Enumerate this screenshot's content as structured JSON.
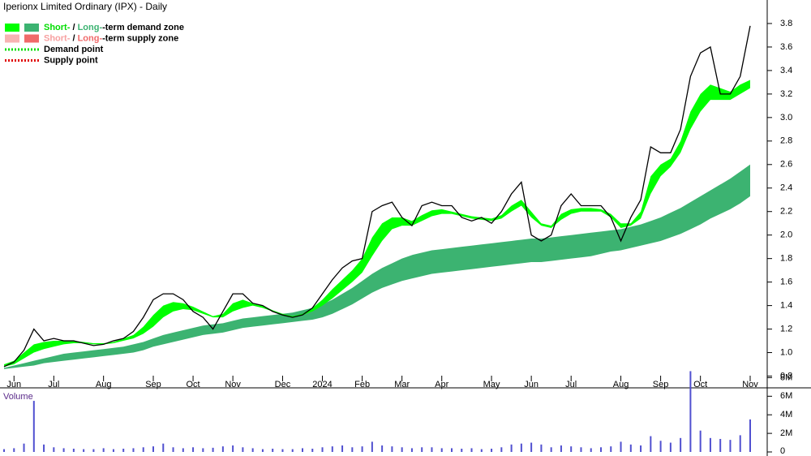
{
  "chart_data": [
    {
      "type": "line",
      "title": "Iperionx Limited Ordinary (IPX) - Daily",
      "legend": [
        {
          "swatches": [
            "#00ff00",
            "#3cb371"
          ],
          "parts": [
            {
              "text": "Short-",
              "color": "#00dd00"
            },
            {
              "text": " / ",
              "color": "#000000"
            },
            {
              "text": "Long-",
              "color": "#3cb371"
            },
            {
              "text": "-term demand zone",
              "color": "#000000"
            }
          ]
        },
        {
          "swatches": [
            "#f7b3b3",
            "#f06a6a"
          ],
          "parts": [
            {
              "text": "Short-",
              "color": "#f7a0a0"
            },
            {
              "text": " / ",
              "color": "#000000"
            },
            {
              "text": "Long-",
              "color": "#f06a6a"
            },
            {
              "text": "-term supply zone",
              "color": "#000000"
            }
          ]
        },
        {
          "dotted": "#00dd00",
          "parts": [
            {
              "text": "Demand point",
              "color": "#000000"
            }
          ]
        },
        {
          "dotted": "#e00000",
          "parts": [
            {
              "text": "Supply point",
              "color": "#000000"
            }
          ]
        }
      ],
      "categories": [
        null,
        "Jun",
        null,
        null,
        null,
        "Jul",
        null,
        null,
        null,
        null,
        "Aug",
        null,
        null,
        null,
        null,
        "Sep",
        null,
        null,
        null,
        "Oct",
        null,
        null,
        null,
        "Nov",
        null,
        null,
        null,
        null,
        "Dec",
        null,
        null,
        null,
        "2024",
        null,
        null,
        null,
        "Feb",
        null,
        null,
        null,
        "Mar",
        null,
        null,
        null,
        "Apr",
        null,
        null,
        null,
        null,
        "May",
        null,
        null,
        null,
        "Jun",
        null,
        null,
        null,
        "Jul",
        null,
        null,
        null,
        null,
        "Aug",
        null,
        null,
        null,
        "Sep",
        null,
        null,
        null,
        "Oct",
        null,
        null,
        null,
        null,
        "Nov"
      ],
      "values": [
        0.88,
        0.92,
        1.02,
        1.2,
        1.1,
        1.12,
        1.1,
        1.1,
        1.08,
        1.06,
        1.07,
        1.1,
        1.12,
        1.18,
        1.3,
        1.45,
        1.5,
        1.5,
        1.45,
        1.35,
        1.3,
        1.2,
        1.35,
        1.5,
        1.5,
        1.42,
        1.4,
        1.35,
        1.32,
        1.3,
        1.32,
        1.38,
        1.5,
        1.62,
        1.72,
        1.78,
        1.8,
        2.2,
        2.25,
        2.28,
        2.15,
        2.08,
        2.25,
        2.28,
        2.25,
        2.25,
        2.15,
        2.12,
        2.15,
        2.1,
        2.2,
        2.35,
        2.45,
        2.0,
        1.95,
        2.0,
        2.25,
        2.35,
        2.25,
        2.25,
        2.25,
        2.15,
        1.95,
        2.15,
        2.3,
        2.75,
        2.7,
        2.7,
        2.9,
        3.35,
        3.55,
        3.6,
        3.2,
        3.2,
        3.35,
        3.78
      ],
      "color": "#000000",
      "bands": [
        {
          "color": "#3cb371",
          "lower": [
            0.86,
            0.87,
            0.88,
            0.89,
            0.91,
            0.92,
            0.93,
            0.94,
            0.95,
            0.96,
            0.97,
            0.98,
            0.99,
            1.0,
            1.02,
            1.05,
            1.07,
            1.09,
            1.11,
            1.13,
            1.15,
            1.16,
            1.17,
            1.19,
            1.21,
            1.22,
            1.23,
            1.24,
            1.25,
            1.26,
            1.27,
            1.28,
            1.3,
            1.33,
            1.37,
            1.41,
            1.46,
            1.51,
            1.55,
            1.58,
            1.61,
            1.63,
            1.65,
            1.67,
            1.68,
            1.69,
            1.7,
            1.71,
            1.72,
            1.73,
            1.74,
            1.75,
            1.76,
            1.77,
            1.77,
            1.78,
            1.79,
            1.8,
            1.81,
            1.82,
            1.84,
            1.86,
            1.87,
            1.89,
            1.91,
            1.93,
            1.95,
            1.98,
            2.01,
            2.05,
            2.09,
            2.14,
            2.18,
            2.22,
            2.27,
            2.33
          ],
          "upper": [
            0.87,
            0.89,
            0.91,
            0.93,
            0.95,
            0.97,
            0.99,
            1.0,
            1.01,
            1.02,
            1.03,
            1.04,
            1.05,
            1.07,
            1.09,
            1.12,
            1.15,
            1.17,
            1.19,
            1.21,
            1.23,
            1.24,
            1.25,
            1.27,
            1.29,
            1.3,
            1.31,
            1.32,
            1.33,
            1.34,
            1.36,
            1.38,
            1.41,
            1.45,
            1.5,
            1.55,
            1.61,
            1.67,
            1.72,
            1.76,
            1.8,
            1.83,
            1.85,
            1.87,
            1.88,
            1.89,
            1.9,
            1.91,
            1.92,
            1.93,
            1.94,
            1.95,
            1.96,
            1.97,
            1.97,
            1.98,
            1.99,
            2.0,
            2.01,
            2.02,
            2.03,
            2.04,
            2.05,
            2.07,
            2.09,
            2.12,
            2.15,
            2.19,
            2.23,
            2.28,
            2.33,
            2.38,
            2.43,
            2.48,
            2.54,
            2.6
          ]
        },
        {
          "color": "#00ff00",
          "lower": [
            0.88,
            0.9,
            0.95,
            1.0,
            1.03,
            1.05,
            1.07,
            1.08,
            1.08,
            1.07,
            1.07,
            1.08,
            1.1,
            1.12,
            1.16,
            1.22,
            1.3,
            1.35,
            1.37,
            1.36,
            1.33,
            1.3,
            1.3,
            1.35,
            1.38,
            1.4,
            1.38,
            1.35,
            1.32,
            1.3,
            1.32,
            1.35,
            1.4,
            1.46,
            1.53,
            1.6,
            1.68,
            1.82,
            1.95,
            2.05,
            2.08,
            2.08,
            2.12,
            2.16,
            2.18,
            2.18,
            2.16,
            2.14,
            2.13,
            2.12,
            2.14,
            2.2,
            2.25,
            2.15,
            2.08,
            2.06,
            2.13,
            2.18,
            2.2,
            2.2,
            2.2,
            2.15,
            2.06,
            2.08,
            2.14,
            2.35,
            2.5,
            2.58,
            2.7,
            2.9,
            3.05,
            3.15,
            3.15,
            3.15,
            3.2,
            3.25
          ],
          "upper": [
            0.9,
            0.93,
            1.0,
            1.07,
            1.09,
            1.1,
            1.1,
            1.1,
            1.09,
            1.08,
            1.08,
            1.09,
            1.12,
            1.15,
            1.22,
            1.32,
            1.4,
            1.43,
            1.42,
            1.39,
            1.35,
            1.31,
            1.33,
            1.42,
            1.45,
            1.42,
            1.4,
            1.36,
            1.33,
            1.31,
            1.33,
            1.38,
            1.45,
            1.54,
            1.62,
            1.7,
            1.8,
            1.98,
            2.1,
            2.15,
            2.15,
            2.12,
            2.17,
            2.21,
            2.22,
            2.2,
            2.18,
            2.16,
            2.15,
            2.14,
            2.17,
            2.25,
            2.3,
            2.2,
            2.1,
            2.08,
            2.18,
            2.22,
            2.23,
            2.23,
            2.22,
            2.18,
            2.1,
            2.1,
            2.2,
            2.5,
            2.6,
            2.65,
            2.8,
            3.05,
            3.2,
            3.28,
            3.25,
            3.22,
            3.28,
            3.32
          ]
        }
      ],
      "ylim": [
        0.7,
        4.0
      ],
      "yticks": [
        0.8,
        {
          "value": 1,
          "label": "1.0"
        },
        1.2,
        1.4,
        1.6,
        1.8,
        {
          "value": 2,
          "label": "2.0"
        },
        2.2,
        2.4,
        2.6,
        2.8,
        {
          "value": 3,
          "label": "3.0"
        },
        3.2,
        3.4,
        3.6,
        3.8
      ]
    },
    {
      "type": "bar",
      "title": "Volume",
      "color": "#5050d0",
      "values": [
        300000,
        400000,
        900000,
        5500000,
        800000,
        500000,
        400000,
        350000,
        300000,
        300000,
        400000,
        300000,
        350000,
        400000,
        500000,
        600000,
        900000,
        500000,
        400000,
        500000,
        400000,
        450000,
        600000,
        700000,
        500000,
        400000,
        300000,
        350000,
        300000,
        300000,
        400000,
        350000,
        500000,
        600000,
        700000,
        500000,
        600000,
        1100000,
        700000,
        600000,
        500000,
        400000,
        500000,
        500000,
        400000,
        400000,
        350000,
        400000,
        300000,
        350000,
        500000,
        800000,
        900000,
        1000000,
        800000,
        500000,
        700000,
        600000,
        500000,
        400000,
        500000,
        600000,
        1100000,
        800000,
        700000,
        1700000,
        1200000,
        1000000,
        1500000,
        8700000,
        2300000,
        1500000,
        1400000,
        1300000,
        1800000,
        3500000
      ],
      "ylim": [
        0,
        9000000
      ],
      "yticks": [
        {
          "value": 0,
          "label": "0"
        },
        {
          "value": 2000000,
          "label": "2M"
        },
        {
          "value": 4000000,
          "label": "4M"
        },
        {
          "value": 6000000,
          "label": "6M"
        },
        {
          "value": 8000000,
          "label": "8M"
        }
      ]
    }
  ]
}
